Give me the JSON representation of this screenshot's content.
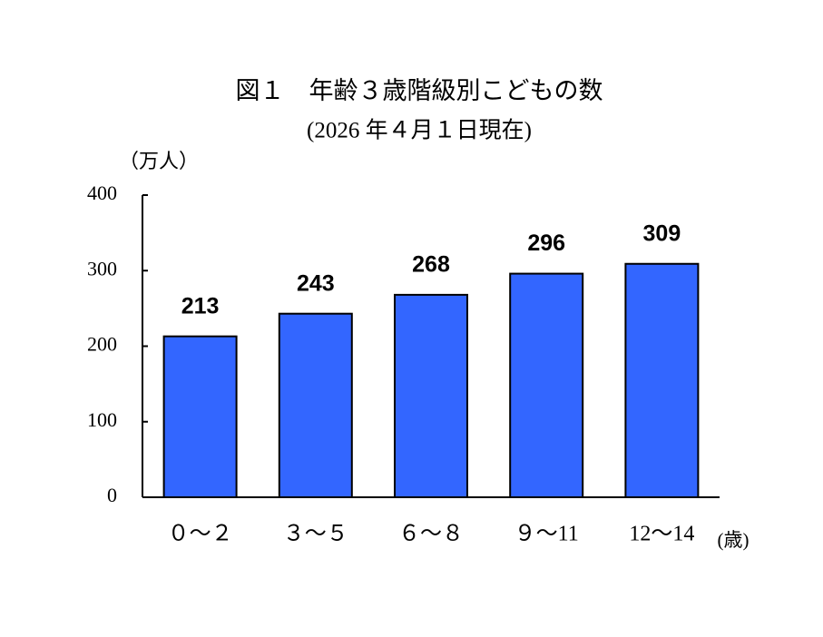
{
  "chart_data": {
    "type": "bar",
    "title": "図１　年齢３歳階級別こどもの数",
    "subtitle": "(2026 年４月１日現在)",
    "y_label": "（万人）",
    "x_label": "(歳)",
    "categories": [
      "０～２",
      "３～５",
      "６～８",
      "９～11",
      "12～14"
    ],
    "values": [
      213,
      243,
      268,
      296,
      309
    ],
    "color": "#3366ff",
    "ylim": [
      0,
      400
    ],
    "yticks": [
      0,
      100,
      200,
      300,
      400
    ],
    "grid": false
  }
}
